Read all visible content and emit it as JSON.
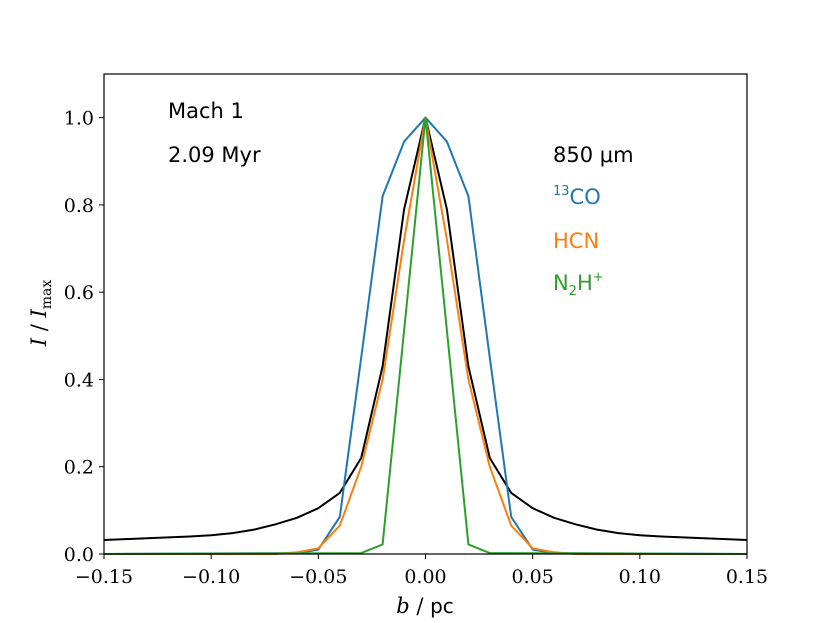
{
  "chart_data": {
    "type": "line",
    "xlabel": "b / pc",
    "ylabel": "I / I_max",
    "xlim": [
      -0.15,
      0.15
    ],
    "ylim": [
      0.0,
      1.1
    ],
    "x_ticks": [
      -0.15,
      -0.1,
      -0.05,
      0.0,
      0.05,
      0.1,
      0.15
    ],
    "x_tick_labels": [
      "−0.15",
      "−0.10",
      "−0.05",
      "0.00",
      "0.05",
      "0.10",
      "0.15"
    ],
    "y_ticks": [
      0.0,
      0.2,
      0.4,
      0.6,
      0.8,
      1.0
    ],
    "y_tick_labels": [
      "0.0",
      "0.2",
      "0.4",
      "0.6",
      "0.8",
      "1.0"
    ],
    "annotations": {
      "model": "Mach 1",
      "time": "2.09 Myr",
      "legend_title": "850 μm"
    },
    "legend": [
      {
        "sup": "13",
        "text": "CO",
        "color": "#1f77b4"
      },
      {
        "text": "HCN",
        "color": "#ff7f0e"
      },
      {
        "text": "N",
        "sub": "2",
        "text2": "H",
        "sup": "+",
        "color": "#2ca02c"
      }
    ],
    "series": [
      {
        "name": "850 μm",
        "color": "#000000",
        "x": [
          -0.15,
          -0.13,
          -0.11,
          -0.1,
          -0.09,
          -0.08,
          -0.07,
          -0.06,
          -0.05,
          -0.04,
          -0.03,
          -0.02,
          -0.01,
          0.0,
          0.01,
          0.02,
          0.03,
          0.04,
          0.05,
          0.06,
          0.07,
          0.08,
          0.09,
          0.1,
          0.11,
          0.13,
          0.15
        ],
        "y": [
          0.032,
          0.036,
          0.04,
          0.043,
          0.048,
          0.056,
          0.068,
          0.083,
          0.105,
          0.14,
          0.22,
          0.43,
          0.79,
          1.0,
          0.79,
          0.43,
          0.22,
          0.14,
          0.105,
          0.083,
          0.068,
          0.056,
          0.048,
          0.043,
          0.04,
          0.036,
          0.032
        ]
      },
      {
        "name": "13CO",
        "color": "#1f77b4",
        "x": [
          -0.15,
          -0.06,
          -0.05,
          -0.04,
          -0.03,
          -0.02,
          -0.01,
          0.0,
          0.01,
          0.02,
          0.03,
          0.04,
          0.05,
          0.06,
          0.15
        ],
        "y": [
          0.0,
          0.002,
          0.01,
          0.085,
          0.45,
          0.82,
          0.945,
          1.0,
          0.945,
          0.82,
          0.45,
          0.085,
          0.01,
          0.002,
          0.0
        ]
      },
      {
        "name": "HCN",
        "color": "#ff7f0e",
        "x": [
          -0.15,
          -0.07,
          -0.06,
          -0.05,
          -0.04,
          -0.03,
          -0.02,
          -0.01,
          0.0,
          0.01,
          0.02,
          0.03,
          0.04,
          0.05,
          0.06,
          0.07,
          0.15
        ],
        "y": [
          0.0,
          0.0,
          0.004,
          0.013,
          0.065,
          0.2,
          0.4,
          0.72,
          1.0,
          0.72,
          0.4,
          0.2,
          0.065,
          0.013,
          0.004,
          0.0,
          0.0
        ]
      },
      {
        "name": "N2H+",
        "color": "#2ca02c",
        "x": [
          -0.15,
          -0.03,
          -0.02,
          0.0,
          0.02,
          0.03,
          0.15
        ],
        "y": [
          0.0,
          0.002,
          0.022,
          1.0,
          0.022,
          0.002,
          0.0
        ]
      }
    ]
  }
}
